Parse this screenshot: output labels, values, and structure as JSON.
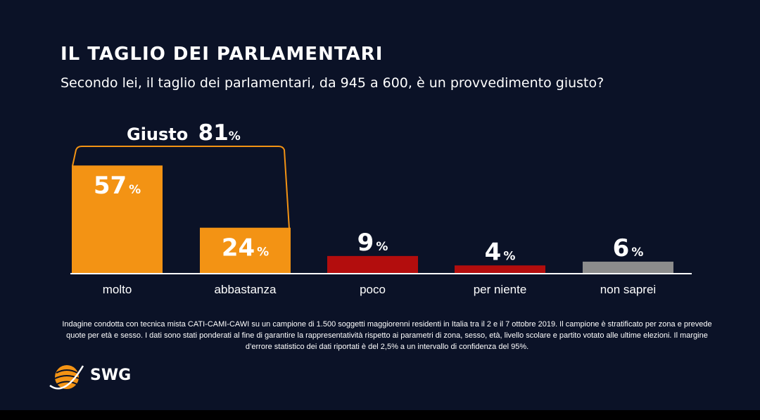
{
  "title": "IL TAGLIO DEI PARLAMENTARI",
  "subtitle": "Secondo lei, il taglio dei parlamentari, da 945 a 600, è un provvedimento giusto?",
  "bracket": {
    "label": "Giusto",
    "value": "81",
    "unit": "%"
  },
  "note": "Indagine condotta con tecnica mista CATI-CAMI-CAWI su un campione di 1.500 soggetti maggiorenni residenti in Italia tra il 2 e il 7 ottobre 2019. Il campione è stratificato per zona e prevede quote per età e sesso. I dati sono stati ponderati al fine di garantire la rappresentatività rispetto ai parametri di zona, sesso, età, livello scolare e partito votato alle ultime elezioni. Il margine d’errore statistico dei dati riportati è del 2,5% a un intervallo di confidenza del 95%.",
  "logo": {
    "text": "SWG",
    "icon": "globe-icon"
  },
  "colors": {
    "background": "#0b1227",
    "orange": "#f39314",
    "red": "#b30d0d",
    "gray": "#8c8c8c",
    "text": "#ffffff"
  },
  "chart_data": {
    "type": "bar",
    "categories": [
      "molto",
      "abbastanza",
      "poco",
      "per niente",
      "non saprei"
    ],
    "values": [
      57,
      24,
      9,
      4,
      6
    ],
    "value_labels": [
      "57",
      "24",
      "9",
      "4",
      "6"
    ],
    "unit": "%",
    "bar_colors": [
      "#f39314",
      "#f39314",
      "#b30d0d",
      "#b30d0d",
      "#8c8c8c"
    ],
    "title": "",
    "xlabel": "",
    "ylabel": "",
    "grid": false,
    "legend": "none"
  }
}
